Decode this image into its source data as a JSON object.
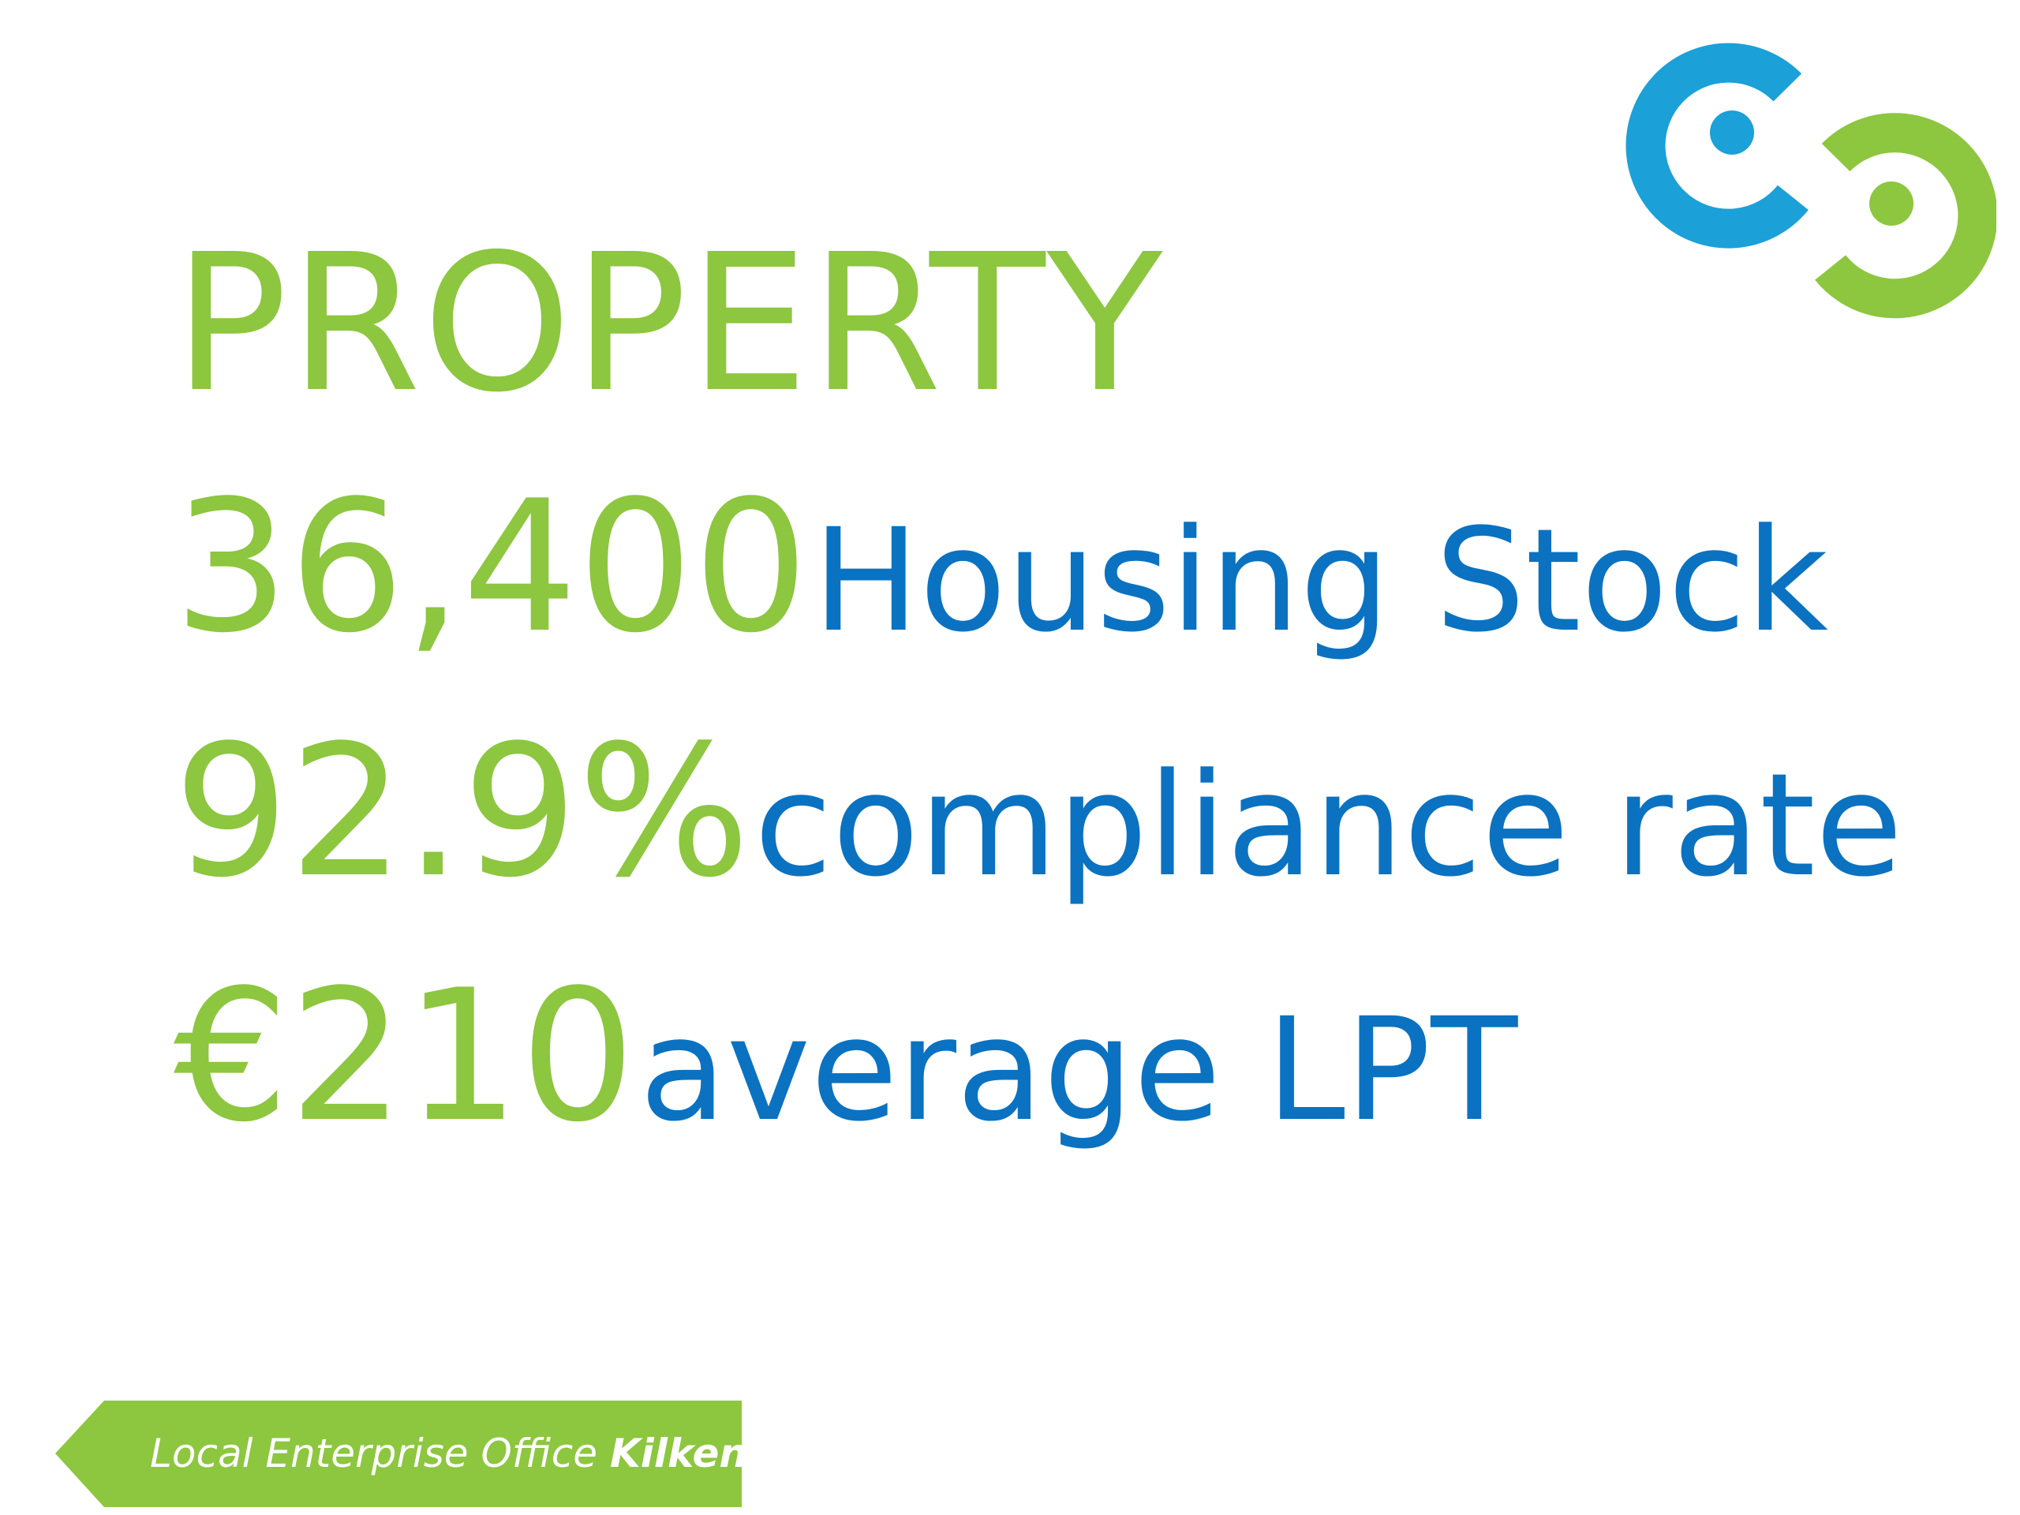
{
  "colors": {
    "accent_green": "#8dc63f",
    "accent_blue": "#0a72c1",
    "logo_blue": "#1ba0d8",
    "background": "#ffffff"
  },
  "logo": {
    "icon": "linked-rings-logo-icon"
  },
  "title": "PROPERTY",
  "stats": [
    {
      "value": "36,400",
      "label": "Housing Stock"
    },
    {
      "value": "92.9%",
      "label": "compliance rate"
    },
    {
      "value": "€210",
      "label": "average LPT"
    }
  ],
  "footer": {
    "label_regular": "Local Enterprise Office",
    "label_bold": "Kilkenny",
    "icon": "arrow-left-banner-icon"
  }
}
